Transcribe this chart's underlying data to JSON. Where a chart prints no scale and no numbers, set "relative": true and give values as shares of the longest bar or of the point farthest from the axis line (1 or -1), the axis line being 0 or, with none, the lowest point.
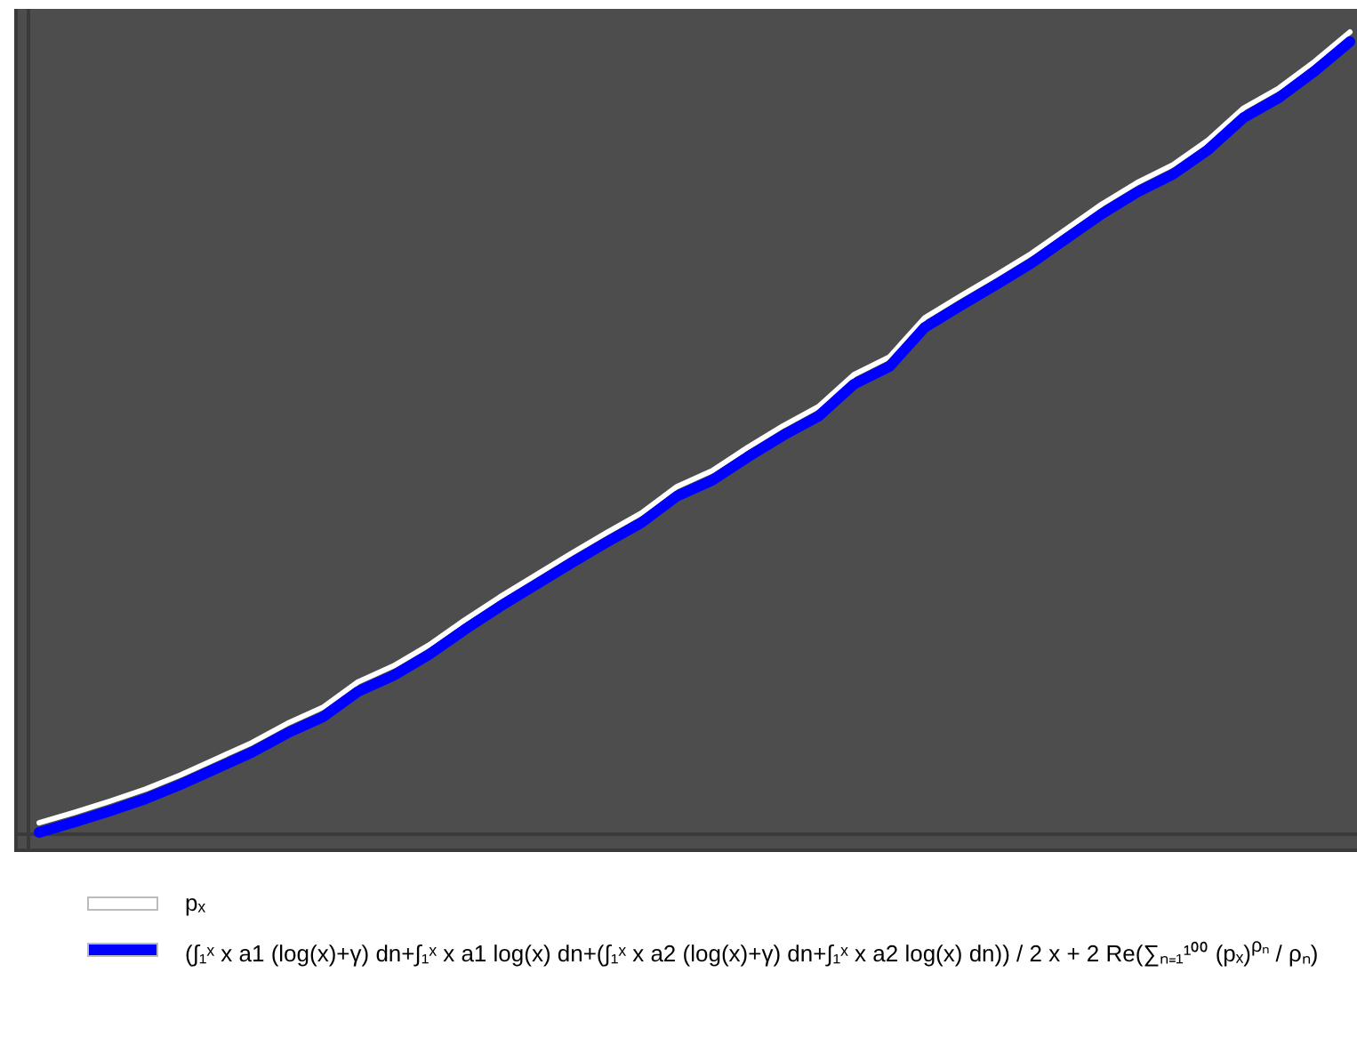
{
  "chart_data": {
    "type": "line",
    "relative": true,
    "legend": "bottom",
    "marker": "none",
    "categories": [
      null,
      null,
      null,
      null,
      null,
      null,
      null,
      null,
      null,
      null,
      null,
      null,
      null,
      null,
      null,
      null,
      null,
      null,
      null,
      null,
      null,
      null,
      null,
      null,
      null,
      null,
      null,
      null,
      null,
      null,
      null,
      null,
      null,
      null,
      null,
      null,
      null,
      null
    ],
    "series": [
      {
        "name": "pₓ",
        "color": "#ffffff",
        "values": [
          0.012,
          0.025,
          0.039,
          0.054,
          0.072,
          0.092,
          0.112,
          0.136,
          0.156,
          0.188,
          0.208,
          0.234,
          0.265,
          0.294,
          0.321,
          0.348,
          0.374,
          0.399,
          0.432,
          0.452,
          0.481,
          0.508,
          0.532,
          0.572,
          0.594,
          0.643,
          0.67,
          0.696,
          0.723,
          0.754,
          0.785,
          0.812,
          0.834,
          0.865,
          0.905,
          0.93,
          0.963,
          1
        ]
      },
      {
        "name": "(∫₁ˣ x a1 (log(x)+γ) dn+∫₁ˣ x a1 log(x) dn+(∫₁ˣ x a2 (log(x)+γ) dn+∫₁ˣ x a2 log(x) dn)) / 2 x + 2 Re(∑ₙ₌₁¹⁰⁰ (pₓ)$^{ρₙ}$ / ρₙ)",
        "color": "#0000ff",
        "values": [
          0,
          0.013,
          0.027,
          0.042,
          0.06,
          0.08,
          0.1,
          0.124,
          0.144,
          0.176,
          0.196,
          0.222,
          0.253,
          0.282,
          0.309,
          0.336,
          0.362,
          0.387,
          0.42,
          0.44,
          0.469,
          0.496,
          0.52,
          0.56,
          0.582,
          0.631,
          0.658,
          0.684,
          0.711,
          0.742,
          0.773,
          0.8,
          0.822,
          0.853,
          0.893,
          0.918,
          0.951,
          0.988
        ]
      }
    ]
  }
}
